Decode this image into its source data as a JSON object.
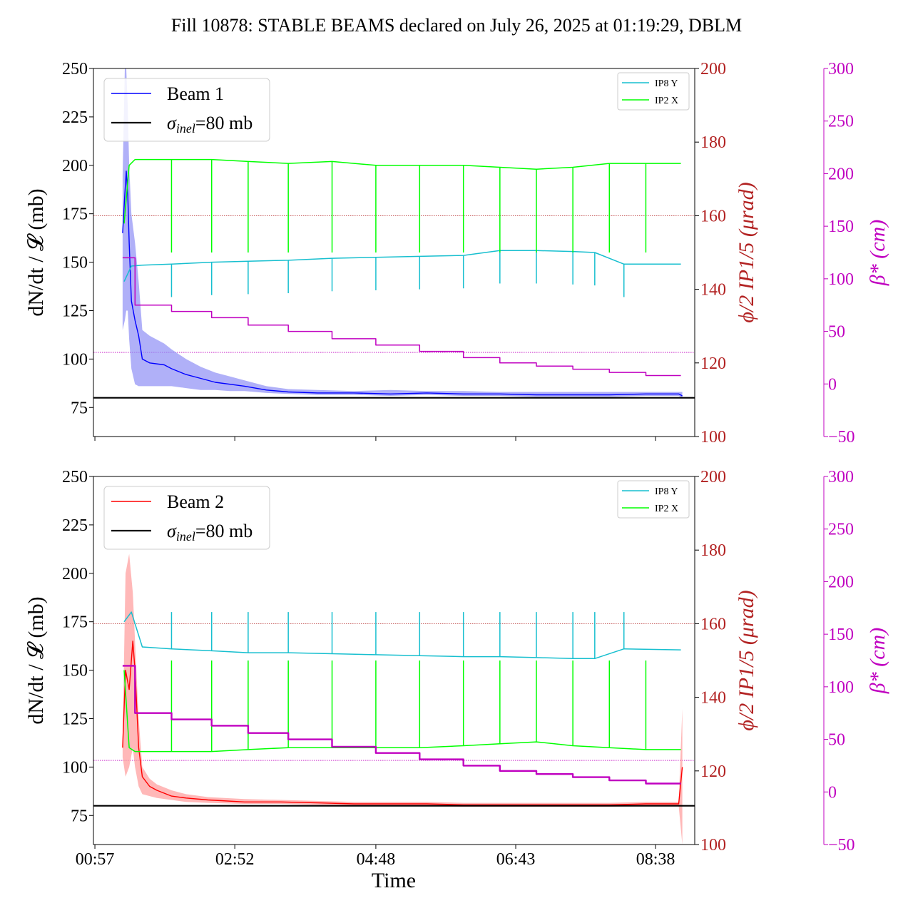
{
  "title": "Fill 10878: STABLE BEAMS declared on July 26, 2025 at 01:19:29, DBLM",
  "colors": {
    "beam1": "#0000ff",
    "beam1_band": "#8f8ff5",
    "beam2": "#ff0000",
    "beam2_band": "#ff9a9a",
    "ip8y": "#17bfcf",
    "ip2x": "#00ff00",
    "beta": "#c000c0",
    "phi_axis": "#b22222",
    "sigma": "#000000"
  },
  "chart_data": [
    {
      "type": "line",
      "panel": "top",
      "x_ticks": [
        "00:57",
        "02:52",
        "04:48",
        "06:43",
        "08:38"
      ],
      "x_tick_hours": [
        0.95,
        2.867,
        4.8,
        6.717,
        8.633
      ],
      "xlim_hours": [
        0.93,
        9.17
      ],
      "xlabel": "",
      "ylabel_left": "dN/dt / 𝓛 (mb)",
      "ylim_left": [
        60,
        250
      ],
      "yticks_left": [
        "75",
        "100",
        "125",
        "150",
        "175",
        "200",
        "225",
        "250"
      ],
      "ylabel_right1": "ϕ/2 IP1/5 (μrad)",
      "ylim_right1": [
        100,
        200
      ],
      "yticks_right1": [
        "100",
        "120",
        "140",
        "160",
        "180",
        "200"
      ],
      "ylabel_right2": "β* (cm)",
      "ylim_right2": [
        -50,
        300
      ],
      "yticks_right2": [
        "−50",
        "0",
        "50",
        "100",
        "150",
        "200",
        "250",
        "300"
      ],
      "legend_main": {
        "beam_label": "Beam 1",
        "sigma_label": "=80 mb",
        "sigma_symbol": "σ",
        "sigma_sub": "inel",
        "placement": "upper-left"
      },
      "legend_small": {
        "items": [
          "IP8 Y",
          "IP2 X"
        ],
        "placement": "upper-right"
      },
      "sigma_inel_mb": 80,
      "hline_phi": 160,
      "hline_beta": 30,
      "series": [
        {
          "name": "Beam 1",
          "axis": "left",
          "x": [
            1.33,
            1.36,
            1.38,
            1.4,
            1.42,
            1.45,
            1.5,
            1.55,
            1.6,
            1.7,
            1.9,
            2.0,
            2.2,
            2.4,
            2.6,
            2.8,
            3.0,
            3.3,
            3.6,
            4.0,
            4.5,
            5.0,
            5.5,
            6.0,
            6.5,
            7.0,
            7.5,
            8.0,
            8.5,
            8.95,
            9.0
          ],
          "y": [
            165,
            185,
            197,
            185,
            160,
            130,
            120,
            112,
            100,
            98,
            97,
            95,
            92,
            90,
            88,
            87,
            86,
            84,
            83,
            82.5,
            82.5,
            82,
            82.5,
            82,
            82,
            81.5,
            81.5,
            81.5,
            82,
            82,
            81
          ],
          "band_upper": [
            195,
            250,
            250,
            230,
            200,
            175,
            160,
            140,
            115,
            112,
            108,
            105,
            100,
            96,
            93,
            91,
            89,
            86,
            84.5,
            84,
            83.5,
            84,
            83.5,
            83.5,
            83,
            83,
            83,
            83,
            83,
            83,
            83
          ],
          "band_lower": [
            115,
            120,
            125,
            125,
            110,
            95,
            87,
            86,
            86,
            86,
            86,
            86,
            85,
            84,
            84,
            83.5,
            83.5,
            82.5,
            82,
            81.5,
            81.5,
            81,
            81.5,
            81,
            81,
            80.5,
            80.5,
            80.5,
            81,
            81,
            80
          ]
        },
        {
          "name": "IP8 Y",
          "axis": "left",
          "x": [
            1.35,
            1.45,
            1.6,
            2.0,
            2.55,
            3.05,
            3.6,
            4.2,
            4.8,
            5.4,
            6.0,
            6.5,
            7.0,
            7.5,
            7.8,
            8.2,
            8.98
          ],
          "y": [
            140,
            148,
            148.5,
            149,
            150,
            150.5,
            151,
            152,
            152.5,
            153,
            153.5,
            156,
            156,
            155.5,
            155,
            149,
            149
          ]
        },
        {
          "name": "IP2 X",
          "axis": "left",
          "x": [
            1.35,
            1.42,
            1.5,
            2.0,
            2.55,
            3.05,
            3.6,
            4.2,
            4.8,
            5.4,
            6.0,
            6.5,
            7.0,
            7.5,
            8.0,
            8.5,
            8.98
          ],
          "y": [
            170,
            200,
            203,
            203,
            203,
            202,
            201,
            202,
            200,
            200,
            200,
            199,
            198,
            199,
            201,
            201,
            201
          ]
        },
        {
          "name": "β*",
          "axis": "right2",
          "x": [
            1.33,
            1.5,
            1.5,
            2.0,
            2.0,
            2.55,
            2.55,
            3.05,
            3.05,
            3.6,
            3.6,
            4.2,
            4.2,
            4.8,
            4.8,
            5.4,
            5.4,
            6.0,
            6.0,
            6.5,
            6.5,
            7.0,
            7.0,
            7.5,
            7.5,
            8.0,
            8.0,
            8.5,
            8.5,
            8.98
          ],
          "y": [
            120,
            120,
            75,
            75,
            69,
            69,
            63,
            63,
            56,
            56,
            50,
            50,
            43,
            43,
            37,
            37,
            31,
            31,
            25,
            25,
            20,
            20,
            17,
            17,
            14,
            14,
            11,
            11,
            8,
            8
          ]
        }
      ]
    },
    {
      "type": "line",
      "panel": "bottom",
      "x_ticks": [
        "00:57",
        "02:52",
        "04:48",
        "06:43",
        "08:38"
      ],
      "x_tick_hours": [
        0.95,
        2.867,
        4.8,
        6.717,
        8.633
      ],
      "xlim_hours": [
        0.93,
        9.17
      ],
      "xlabel": "Time",
      "ylabel_left": "dN/dt / 𝓛 (mb)",
      "ylim_left": [
        60,
        250
      ],
      "yticks_left": [
        "75",
        "100",
        "125",
        "150",
        "175",
        "200",
        "225",
        "250"
      ],
      "ylabel_right1": "ϕ/2 IP1/5 (μrad)",
      "ylim_right1": [
        100,
        200
      ],
      "yticks_right1": [
        "100",
        "120",
        "140",
        "160",
        "180",
        "200"
      ],
      "ylabel_right2": "β* (cm)",
      "ylim_right2": [
        -50,
        300
      ],
      "yticks_right2": [
        "−50",
        "0",
        "50",
        "100",
        "150",
        "200",
        "250",
        "300"
      ],
      "legend_main": {
        "beam_label": "Beam 2",
        "sigma_label": "=80 mb",
        "sigma_symbol": "σ",
        "sigma_sub": "inel",
        "placement": "upper-left"
      },
      "legend_small": {
        "items": [
          "IP8 Y",
          "IP2 X"
        ],
        "placement": "upper-right"
      },
      "sigma_inel_mb": 80,
      "hline_phi": 160,
      "hline_beta": 30,
      "series": [
        {
          "name": "Beam 2",
          "axis": "left",
          "x": [
            1.33,
            1.37,
            1.42,
            1.47,
            1.5,
            1.55,
            1.6,
            1.7,
            1.8,
            2.0,
            2.2,
            2.5,
            3.0,
            3.5,
            4.0,
            4.5,
            5.0,
            5.5,
            6.0,
            6.5,
            7.0,
            7.5,
            8.0,
            8.5,
            8.95,
            9.0
          ],
          "y": [
            110,
            150,
            140,
            165,
            150,
            110,
            95,
            90,
            88,
            85,
            84,
            83,
            82,
            82,
            81.5,
            81,
            81,
            81,
            80.5,
            80.5,
            80.5,
            80.5,
            80.5,
            81,
            81,
            100
          ],
          "band_upper": [
            115,
            200,
            210,
            190,
            165,
            125,
            100,
            94,
            91,
            88,
            86,
            84.5,
            83.5,
            83,
            82.5,
            82,
            82,
            82,
            81.5,
            81.5,
            81.5,
            81.5,
            81.5,
            82,
            82,
            130
          ],
          "band_lower": [
            105,
            95,
            100,
            110,
            100,
            90,
            86,
            85,
            84,
            83,
            82,
            81.5,
            81,
            81,
            80.5,
            80,
            80,
            80,
            79.5,
            79.5,
            79.5,
            79.5,
            79.5,
            80,
            80,
            60
          ]
        },
        {
          "name": "IP8 Y",
          "axis": "left",
          "x": [
            1.35,
            1.45,
            1.6,
            2.0,
            2.55,
            3.05,
            3.6,
            4.2,
            4.8,
            5.4,
            6.0,
            6.5,
            7.0,
            7.5,
            7.8,
            8.2,
            8.98
          ],
          "y": [
            175,
            180,
            162,
            161,
            160,
            159,
            159,
            158.5,
            158,
            157.5,
            157,
            157,
            156.5,
            156,
            156,
            161,
            160.5
          ]
        },
        {
          "name": "IP2 X",
          "axis": "left",
          "x": [
            1.35,
            1.42,
            1.5,
            2.0,
            2.55,
            3.05,
            3.6,
            4.2,
            4.8,
            5.4,
            6.0,
            6.5,
            7.0,
            7.5,
            8.0,
            8.5,
            8.98
          ],
          "y": [
            150,
            110,
            108,
            108,
            108,
            109,
            110,
            110,
            110,
            110,
            111,
            112,
            113,
            111,
            110,
            109,
            109
          ]
        },
        {
          "name": "β*",
          "axis": "right2",
          "x": [
            1.33,
            1.5,
            1.5,
            2.0,
            2.0,
            2.55,
            2.55,
            3.05,
            3.05,
            3.6,
            3.6,
            4.2,
            4.2,
            4.8,
            4.8,
            5.4,
            5.4,
            6.0,
            6.0,
            6.5,
            6.5,
            7.0,
            7.0,
            7.5,
            7.5,
            8.0,
            8.0,
            8.5,
            8.5,
            8.98
          ],
          "y": [
            120,
            120,
            75,
            75,
            69,
            69,
            63,
            63,
            56,
            56,
            50,
            50,
            43,
            43,
            37,
            37,
            31,
            31,
            25,
            25,
            20,
            20,
            17,
            17,
            14,
            14,
            11,
            11,
            8,
            8
          ]
        }
      ]
    }
  ]
}
